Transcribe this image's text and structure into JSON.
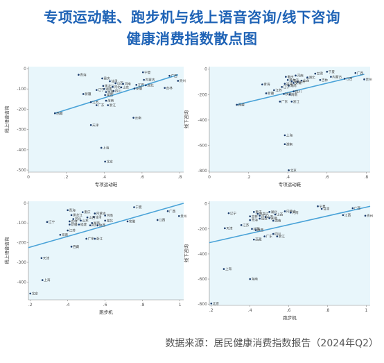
{
  "title_line1": "专项运动鞋、跑步机与线上语音咨询/线下咨询",
  "title_line2": "健康消费指数散点图",
  "footer": "数据来源：居民健康消费指数报告（2024年Q2）",
  "colors": {
    "title": "#1f63b6",
    "panel_bg": "#e8f6fb",
    "point": "#1a3a6b",
    "line": "#4aa3d8"
  },
  "chart_data": [
    {
      "type": "scatter",
      "xlabel": "专项运动鞋",
      "ylabel": "线上语音咨询",
      "xlim": [
        0,
        0.82
      ],
      "ylim": [
        -510,
        10
      ],
      "x_ticks": [
        "0",
        ".2",
        ".4",
        ".6",
        ".8"
      ],
      "x_tick_values": [
        0,
        0.2,
        0.4,
        0.6,
        0.8
      ],
      "y_ticks": [
        "0",
        "-100",
        "-200",
        "-300",
        "-400",
        "-500"
      ],
      "y_tick_values": [
        0,
        -100,
        -200,
        -300,
        -400,
        -500
      ],
      "trend": [
        [
          0.14,
          -220
        ],
        [
          0.79,
          -30
        ]
      ],
      "points": [
        {
          "label": "宁夏",
          "x": 0.605,
          "y": -18
        },
        {
          "label": "青海",
          "x": 0.265,
          "y": -30
        },
        {
          "label": "广西",
          "x": 0.745,
          "y": -35
        },
        {
          "label": "重庆",
          "x": 0.39,
          "y": -48
        },
        {
          "label": "内蒙古",
          "x": 0.61,
          "y": -55
        },
        {
          "label": "贵州",
          "x": 0.79,
          "y": -60
        },
        {
          "label": "甘肃",
          "x": 0.43,
          "y": -62
        },
        {
          "label": "山西",
          "x": 0.46,
          "y": -72
        },
        {
          "label": "河南",
          "x": 0.5,
          "y": -75
        },
        {
          "label": "江西",
          "x": 0.57,
          "y": -80
        },
        {
          "label": "湖北",
          "x": 0.62,
          "y": -82
        },
        {
          "label": "黑龙江",
          "x": 0.395,
          "y": -85
        },
        {
          "label": "河北",
          "x": 0.445,
          "y": -90
        },
        {
          "label": "山东",
          "x": 0.49,
          "y": -92
        },
        {
          "label": "吉林",
          "x": 0.72,
          "y": -95
        },
        {
          "label": "安徽",
          "x": 0.56,
          "y": -98
        },
        {
          "label": "湖南",
          "x": 0.4,
          "y": -100
        },
        {
          "label": "辽宁",
          "x": 0.36,
          "y": -105
        },
        {
          "label": "四川",
          "x": 0.45,
          "y": -110
        },
        {
          "label": "福建",
          "x": 0.41,
          "y": -115
        },
        {
          "label": "新疆",
          "x": 0.29,
          "y": -125
        },
        {
          "label": "陕西",
          "x": 0.405,
          "y": -130
        },
        {
          "label": "海南",
          "x": 0.41,
          "y": -158
        },
        {
          "label": "江苏",
          "x": 0.33,
          "y": -165
        },
        {
          "label": "广东",
          "x": 0.36,
          "y": -180
        },
        {
          "label": "浙江",
          "x": 0.42,
          "y": -180
        },
        {
          "label": "西藏",
          "x": 0.14,
          "y": -220
        },
        {
          "label": "云南",
          "x": 0.555,
          "y": -242
        },
        {
          "label": "天津",
          "x": 0.33,
          "y": -278
        },
        {
          "label": "上海",
          "x": 0.385,
          "y": -390
        },
        {
          "label": "北京",
          "x": 0.405,
          "y": -458
        }
      ]
    },
    {
      "type": "scatter",
      "xlabel": "专项运动鞋",
      "ylabel": "线下咨询",
      "xlim": [
        0,
        0.82
      ],
      "ylim": [
        -810,
        20
      ],
      "x_ticks": [
        "0",
        ".2",
        ".4",
        ".6",
        ".8"
      ],
      "x_tick_values": [
        0,
        0.2,
        0.4,
        0.6,
        0.8
      ],
      "y_ticks": [
        "0",
        "-200",
        "-400",
        "-600",
        "-800"
      ],
      "y_tick_values": [
        0,
        -200,
        -400,
        -600,
        -800
      ],
      "trend": [
        [
          0.14,
          -280
        ],
        [
          0.79,
          -40
        ]
      ],
      "points": [
        {
          "label": "宁夏",
          "x": 0.6,
          "y": -20
        },
        {
          "label": "甘肃",
          "x": 0.54,
          "y": -35
        },
        {
          "label": "广西",
          "x": 0.745,
          "y": -30
        },
        {
          "label": "内蒙古",
          "x": 0.62,
          "y": -60
        },
        {
          "label": "湖北",
          "x": 0.5,
          "y": -65
        },
        {
          "label": "河南",
          "x": 0.44,
          "y": -50
        },
        {
          "label": "重庆",
          "x": 0.39,
          "y": -60
        },
        {
          "label": "贵州",
          "x": 0.79,
          "y": -80
        },
        {
          "label": "江西",
          "x": 0.69,
          "y": -75
        },
        {
          "label": "吉林",
          "x": 0.565,
          "y": -85
        },
        {
          "label": "山西",
          "x": 0.47,
          "y": -90
        },
        {
          "label": "黑龙江",
          "x": 0.4,
          "y": -85
        },
        {
          "label": "河北",
          "x": 0.42,
          "y": -95
        },
        {
          "label": "山东",
          "x": 0.45,
          "y": -100
        },
        {
          "label": "安徽",
          "x": 0.43,
          "y": -108
        },
        {
          "label": "福建",
          "x": 0.385,
          "y": -115
        },
        {
          "label": "青海",
          "x": 0.27,
          "y": -120
        },
        {
          "label": "湖南",
          "x": 0.405,
          "y": -130
        },
        {
          "label": "辽宁",
          "x": 0.37,
          "y": -140
        },
        {
          "label": "江苏",
          "x": 0.33,
          "y": -165
        },
        {
          "label": "四川",
          "x": 0.43,
          "y": -175
        },
        {
          "label": "新疆",
          "x": 0.29,
          "y": -190
        },
        {
          "label": "陕西",
          "x": 0.38,
          "y": -195
        },
        {
          "label": "海南",
          "x": 0.41,
          "y": -200
        },
        {
          "label": "广东",
          "x": 0.36,
          "y": -255
        },
        {
          "label": "浙江",
          "x": 0.42,
          "y": -255
        },
        {
          "label": "西藏",
          "x": 0.14,
          "y": -280
        },
        {
          "label": "上海",
          "x": 0.385,
          "y": -520
        },
        {
          "label": "湖南",
          "x": 0.385,
          "y": -590
        },
        {
          "label": "北京",
          "x": 0.405,
          "y": -795
        }
      ]
    },
    {
      "type": "scatter",
      "xlabel": "跑步机",
      "ylabel": "线上语音咨询",
      "xlim": [
        0.19,
        1.02
      ],
      "ylim": [
        -490,
        10
      ],
      "x_ticks": [
        ".2",
        ".4",
        ".6",
        ".8",
        "1"
      ],
      "x_tick_values": [
        0.2,
        0.4,
        0.6,
        0.8,
        1.0
      ],
      "y_ticks": [
        "0",
        "-100",
        "-200",
        "-300",
        "-400"
      ],
      "y_tick_values": [
        0,
        -100,
        -200,
        -300,
        -400
      ],
      "trend": [
        [
          0.19,
          -225
        ],
        [
          1.02,
          0
        ]
      ],
      "points": [
        {
          "label": "宁夏",
          "x": 0.755,
          "y": -20
        },
        {
          "label": "青海",
          "x": 0.4,
          "y": -35
        },
        {
          "label": "广西",
          "x": 0.935,
          "y": -40
        },
        {
          "label": "重庆",
          "x": 0.48,
          "y": -45
        },
        {
          "label": "内蒙古",
          "x": 0.545,
          "y": -52
        },
        {
          "label": "黑龙江",
          "x": 0.42,
          "y": -60
        },
        {
          "label": "河南",
          "x": 0.6,
          "y": -62
        },
        {
          "label": "贵州",
          "x": 0.995,
          "y": -65
        },
        {
          "label": "甘肃",
          "x": 0.54,
          "y": -70
        },
        {
          "label": "江西",
          "x": 0.88,
          "y": -85
        },
        {
          "label": "山西",
          "x": 0.505,
          "y": -72
        },
        {
          "label": "河北",
          "x": 0.43,
          "y": -80
        },
        {
          "label": "湖北",
          "x": 0.6,
          "y": -88
        },
        {
          "label": "山东",
          "x": 0.47,
          "y": -88
        },
        {
          "label": "吉林",
          "x": 0.41,
          "y": -92
        },
        {
          "label": "安徽",
          "x": 0.72,
          "y": -92
        },
        {
          "label": "辽宁",
          "x": 0.29,
          "y": -95
        },
        {
          "label": "湖南",
          "x": 0.53,
          "y": -100
        },
        {
          "label": "新疆",
          "x": 0.41,
          "y": -108
        },
        {
          "label": "四川",
          "x": 0.52,
          "y": -112
        },
        {
          "label": "福建",
          "x": 0.46,
          "y": -108
        },
        {
          "label": "陕西",
          "x": 0.56,
          "y": -112
        },
        {
          "label": "江苏",
          "x": 0.4,
          "y": -138
        },
        {
          "label": "海南",
          "x": 0.36,
          "y": -160
        },
        {
          "label": "广东",
          "x": 0.5,
          "y": -180
        },
        {
          "label": "浙江",
          "x": 0.545,
          "y": -180
        },
        {
          "label": "西藏",
          "x": 0.42,
          "y": -220
        },
        {
          "label": "天津",
          "x": 0.26,
          "y": -278
        },
        {
          "label": "上海",
          "x": 0.265,
          "y": -390
        },
        {
          "label": "北京",
          "x": 0.2,
          "y": -458
        }
      ]
    },
    {
      "type": "scatter",
      "xlabel": "跑步机",
      "ylabel": "线下咨询",
      "xlim": [
        0.19,
        1.02
      ],
      "ylim": [
        -810,
        20
      ],
      "x_ticks": [
        ".2",
        ".4",
        ".6",
        ".8",
        "1"
      ],
      "x_tick_values": [
        0.2,
        0.4,
        0.6,
        0.8,
        1.0
      ],
      "y_ticks": [
        "0",
        "-200",
        "-400",
        "-600",
        "-800"
      ],
      "y_tick_values": [
        0,
        -200,
        -400,
        -600,
        -800
      ],
      "trend": [
        [
          0.19,
          -310
        ],
        [
          1.02,
          -20
        ]
      ],
      "points": [
        {
          "label": "宁夏",
          "x": 0.75,
          "y": -20
        },
        {
          "label": "甘肃",
          "x": 0.77,
          "y": -40
        },
        {
          "label": "广西",
          "x": 0.93,
          "y": -35
        },
        {
          "label": "辽宁",
          "x": 0.29,
          "y": -75
        },
        {
          "label": "内蒙古",
          "x": 0.58,
          "y": -60
        },
        {
          "label": "湖北",
          "x": 0.5,
          "y": -65
        },
        {
          "label": "河南",
          "x": 0.61,
          "y": -70
        },
        {
          "label": "重庆",
          "x": 0.42,
          "y": -65
        },
        {
          "label": "黑龙江",
          "x": 0.44,
          "y": -80
        },
        {
          "label": "山西",
          "x": 0.53,
          "y": -85
        },
        {
          "label": "江西",
          "x": 0.88,
          "y": -90
        },
        {
          "label": "贵州",
          "x": 0.995,
          "y": -95
        },
        {
          "label": "吉林",
          "x": 0.4,
          "y": -100
        },
        {
          "label": "河北",
          "x": 0.45,
          "y": -95
        },
        {
          "label": "山东",
          "x": 0.48,
          "y": -105
        },
        {
          "label": "安徽",
          "x": 0.5,
          "y": -115
        },
        {
          "label": "福建",
          "x": 0.45,
          "y": -118
        },
        {
          "label": "青海",
          "x": 0.4,
          "y": -130
        },
        {
          "label": "湖南",
          "x": 0.52,
          "y": -135
        },
        {
          "label": "江苏",
          "x": 0.355,
          "y": -170
        },
        {
          "label": "天津",
          "x": 0.27,
          "y": -195
        },
        {
          "label": "新疆",
          "x": 0.41,
          "y": -200
        },
        {
          "label": "陕西",
          "x": 0.43,
          "y": -210
        },
        {
          "label": "四川",
          "x": 0.52,
          "y": -240
        },
        {
          "label": "广东",
          "x": 0.475,
          "y": -260
        },
        {
          "label": "浙江",
          "x": 0.54,
          "y": -260
        },
        {
          "label": "西藏",
          "x": 0.42,
          "y": -285
        },
        {
          "label": "上海",
          "x": 0.265,
          "y": -520
        },
        {
          "label": "海南",
          "x": 0.4,
          "y": -600
        },
        {
          "label": "北京",
          "x": 0.2,
          "y": -795
        }
      ]
    }
  ]
}
